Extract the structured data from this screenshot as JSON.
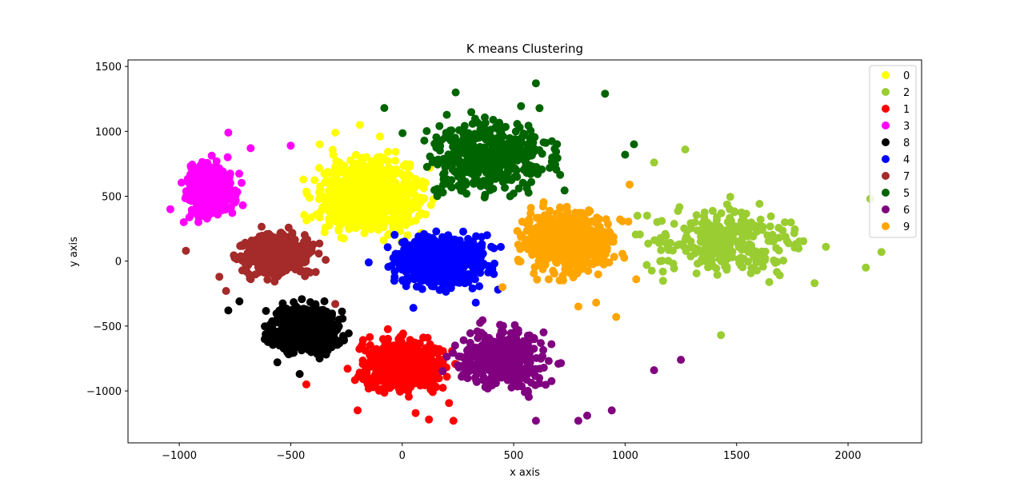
{
  "chart_data": {
    "type": "scatter",
    "title": "K means Clustering",
    "xlabel": "x axis",
    "ylabel": "y axis",
    "xlim": [
      -1230,
      2330
    ],
    "ylim": [
      -1400,
      1550
    ],
    "xticks": [
      -1000,
      -500,
      0,
      500,
      1000,
      1500,
      2000
    ],
    "xtick_labels": [
      "−1000",
      "−500",
      "0",
      "500",
      "1000",
      "1500",
      "2000"
    ],
    "yticks": [
      -1000,
      -500,
      0,
      500,
      1000,
      1500
    ],
    "ytick_labels": [
      "−1000",
      "−500",
      "0",
      "500",
      "1000",
      "1500"
    ],
    "grid": false,
    "legend_position": "top-right",
    "clusters": [
      {
        "name": "0",
        "color": "#ffff00",
        "center": [
          -150,
          500
        ],
        "spread": [
          160,
          200
        ],
        "count": 700,
        "extra": [
          [
            -300,
            990
          ],
          [
            -190,
            1050
          ],
          [
            -370,
            900
          ],
          [
            -100,
            960
          ]
        ]
      },
      {
        "name": "2",
        "color": "#9acd32",
        "center": [
          1450,
          150
        ],
        "spread": [
          230,
          170
        ],
        "count": 300,
        "extra": [
          [
            2150,
            70
          ],
          [
            2100,
            480
          ],
          [
            1430,
            -570
          ],
          [
            1270,
            860
          ],
          [
            1130,
            760
          ],
          [
            2080,
            -50
          ],
          [
            1850,
            -170
          ]
        ]
      },
      {
        "name": "1",
        "color": "#ff0000",
        "center": [
          0,
          -800
        ],
        "spread": [
          130,
          140
        ],
        "count": 600,
        "extra": [
          [
            -200,
            -1150
          ],
          [
            120,
            -1220
          ],
          [
            230,
            -1230
          ],
          [
            -430,
            -950
          ],
          [
            60,
            -1170
          ]
        ]
      },
      {
        "name": "3",
        "color": "#ff00ff",
        "center": [
          -860,
          550
        ],
        "spread": [
          70,
          140
        ],
        "count": 450,
        "extra": [
          [
            -1040,
            400
          ],
          [
            -780,
            990
          ],
          [
            -500,
            890
          ],
          [
            -680,
            870
          ],
          [
            -980,
            300
          ]
        ]
      },
      {
        "name": "8",
        "color": "#000000",
        "center": [
          -430,
          -520
        ],
        "spread": [
          100,
          120
        ],
        "count": 600,
        "extra": [
          [
            -560,
            -780
          ],
          [
            -460,
            -870
          ],
          [
            -780,
            -380
          ],
          [
            -730,
            -310
          ]
        ]
      },
      {
        "name": "4",
        "color": "#0000ff",
        "center": [
          180,
          0
        ],
        "spread": [
          140,
          130
        ],
        "count": 650,
        "extra": [
          [
            -150,
            -10
          ],
          [
            430,
            -220
          ],
          [
            330,
            -320
          ],
          [
            50,
            -360
          ]
        ]
      },
      {
        "name": "7",
        "color": "#a52a2a",
        "center": [
          -560,
          50
        ],
        "spread": [
          110,
          110
        ],
        "count": 550,
        "extra": [
          [
            -970,
            80
          ],
          [
            -820,
            -120
          ],
          [
            -790,
            -230
          ],
          [
            -300,
            -330
          ]
        ]
      },
      {
        "name": "5",
        "color": "#006400",
        "center": [
          400,
          800
        ],
        "spread": [
          190,
          190
        ],
        "count": 450,
        "extra": [
          [
            240,
            1300
          ],
          [
            600,
            1370
          ],
          [
            910,
            1290
          ],
          [
            -80,
            1180
          ],
          [
            1040,
            900
          ],
          [
            1000,
            820
          ]
        ]
      },
      {
        "name": "6",
        "color": "#800080",
        "center": [
          450,
          -750
        ],
        "spread": [
          140,
          160
        ],
        "count": 400,
        "extra": [
          [
            1250,
            -760
          ],
          [
            1130,
            -840
          ],
          [
            940,
            -1150
          ],
          [
            790,
            -1230
          ],
          [
            600,
            -1230
          ],
          [
            830,
            -1190
          ]
        ]
      },
      {
        "name": "9",
        "color": "#ffa500",
        "center": [
          750,
          150
        ],
        "spread": [
          140,
          160
        ],
        "count": 550,
        "extra": [
          [
            1020,
            590
          ],
          [
            870,
            -320
          ],
          [
            790,
            -350
          ],
          [
            450,
            -200
          ],
          [
            1050,
            -140
          ],
          [
            960,
            -430
          ]
        ]
      }
    ]
  }
}
